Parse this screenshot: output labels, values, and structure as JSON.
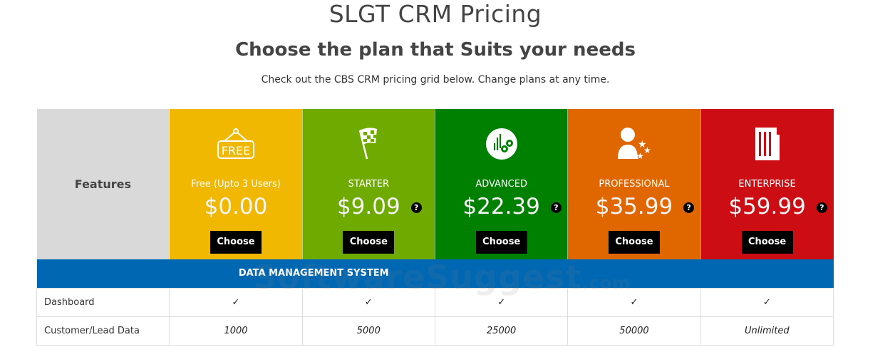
{
  "title": "SLGT CRM Pricing",
  "subtitle": "Choose the plan that Suits your needs",
  "description": "Check out the CBS CRM pricing grid below. Change plans at any time.",
  "features_label": "Features",
  "plans": [
    {
      "name": "Free (Upto 3 Users)",
      "price": "$0.00",
      "button": "Choose",
      "color": "#f0b800",
      "icon": "free-sign-icon",
      "help": false
    },
    {
      "name": "STARTER",
      "price": "$9.09",
      "button": "Choose",
      "color": "#6eaa00",
      "icon": "checkered-flag-icon",
      "help": true
    },
    {
      "name": "ADVANCED",
      "price": "$22.39",
      "button": "Choose",
      "color": "#008000",
      "icon": "chart-gears-icon",
      "help": true
    },
    {
      "name": "PROFESSIONAL",
      "price": "$35.99",
      "button": "Choose",
      "color": "#e06600",
      "icon": "user-stars-icon",
      "help": true
    },
    {
      "name": "ENTERPRISE",
      "price": "$59.99",
      "button": "Choose",
      "color": "#cc0e14",
      "icon": "building-icon",
      "help": true
    }
  ],
  "help_glyph": "?",
  "section": "DATA MANAGEMENT SYSTEM",
  "rows": [
    {
      "feature": "Dashboard",
      "values": [
        "✓",
        "✓",
        "✓",
        "✓",
        "✓"
      ],
      "italic": false
    },
    {
      "feature": "Customer/Lead Data",
      "values": [
        "1000",
        "5000",
        "25000",
        "50000",
        "Unlimited"
      ],
      "italic": true
    }
  ],
  "watermark": {
    "main": "SoftwareSuggest",
    "suffix": ".com"
  }
}
